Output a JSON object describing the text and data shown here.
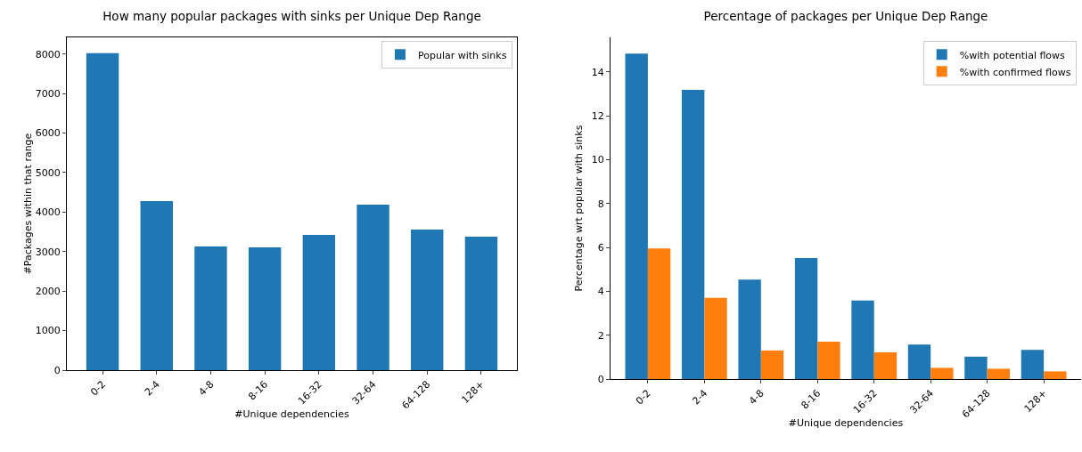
{
  "chart_data": [
    {
      "type": "bar",
      "title": "How many popular packages with sinks per Unique Dep Range",
      "xlabel": "#Unique dependencies",
      "ylabel": "#Packages within that range",
      "categories": [
        "0-2",
        "2-4",
        "4-8",
        "8-16",
        "16-32",
        "32-64",
        "64-128",
        "128+"
      ],
      "series": [
        {
          "name": "Popular with sinks",
          "color": "#1f77b4",
          "values": [
            8020,
            4280,
            3130,
            3110,
            3420,
            4190,
            3560,
            3380
          ]
        }
      ],
      "ylim": [
        0,
        8421
      ],
      "yticks": [
        0,
        1000,
        2000,
        3000,
        4000,
        5000,
        6000,
        7000,
        8000
      ],
      "grid": false,
      "legend": "top right"
    },
    {
      "type": "bar",
      "title": "Percentage of packages per Unique Dep Range",
      "xlabel": "#Unique dependencies",
      "ylabel": "Percentage wrt popular with sinks",
      "categories": [
        "0-2",
        "2-4",
        "4-8",
        "8-16",
        "16-32",
        "32-64",
        "64-128",
        "128+"
      ],
      "series": [
        {
          "name": "%with potential flows",
          "color": "#1f77b4",
          "values": [
            14.83,
            13.18,
            4.53,
            5.51,
            3.58,
            1.57,
            1.02,
            1.33
          ]
        },
        {
          "name": "%with confirmed flows",
          "color": "#ff7f0e",
          "values": [
            5.95,
            3.7,
            1.3,
            1.7,
            1.22,
            0.51,
            0.47,
            0.35
          ]
        }
      ],
      "ylim": [
        0,
        15.57
      ],
      "yticks": [
        0,
        2,
        4,
        6,
        8,
        10,
        12,
        14
      ],
      "grid": false,
      "legend": "top right"
    }
  ]
}
